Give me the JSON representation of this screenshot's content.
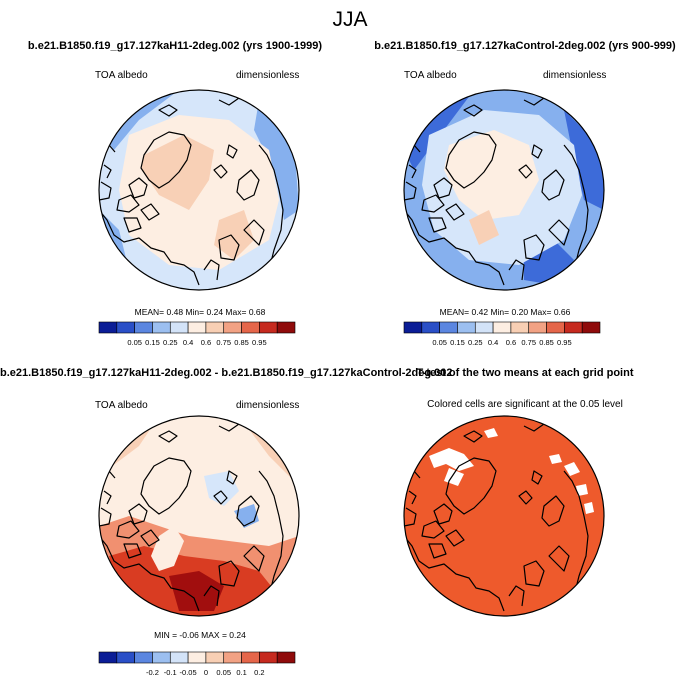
{
  "page_title": "JJA",
  "colors": {
    "blue_dark": "#0b1d96",
    "blue_mid": "#3d6bd9",
    "blue_light": "#86b0ee",
    "blue_pale": "#d6e6fa",
    "cream": "#fdeee2",
    "peach": "#f8d0b6",
    "orange": "#f19070",
    "red": "#d93c22",
    "dark_red": "#a10e0e",
    "significance": "#ee5a2c",
    "coastline": "#000000"
  },
  "panels": [
    {
      "title": "b.e21.B1850.f19_g17.127kaH11-2deg.002 (yrs 1900-1999)",
      "left_label": "TOA albedo",
      "right_label": "dimensionless",
      "stats": {
        "mean_label": "MEAN=",
        "mean": "0.48",
        "min_label": "Min=",
        "min": "0.24",
        "max_label": "Max=",
        "max": "0.68"
      },
      "colorbar_ticks": [
        "0.05",
        "0.15",
        "0.25",
        "0.4",
        "0.6",
        "0.75",
        "0.85",
        "0.95"
      ]
    },
    {
      "title": "b.e21.B1850.f19_g17.127kaControl-2deg.002 (yrs 900-999)",
      "left_label": "TOA albedo",
      "right_label": "dimensionless",
      "stats": {
        "mean_label": "MEAN=",
        "mean": "0.42",
        "min_label": "Min=",
        "min": "0.20",
        "max_label": "Max=",
        "max": "0.66"
      },
      "colorbar_ticks": [
        "0.05",
        "0.15",
        "0.25",
        "0.4",
        "0.6",
        "0.75",
        "0.85",
        "0.95"
      ]
    },
    {
      "title": "b.e21.B1850.f19_g17.127kaH11-2deg.002 - b.e21.B1850.f19_g17.127kaControl-2deg.002",
      "left_label": "TOA albedo",
      "right_label": "dimensionless",
      "stats": {
        "min_label": "MIN =",
        "min": "-0.06",
        "max_label": "MAX =",
        "max": "0.24"
      },
      "colorbar_ticks": [
        "-0.2",
        "-0.1",
        "-0.05",
        "0",
        "0.05",
        "0.1",
        "0.2"
      ]
    },
    {
      "title": "T-test of the two means at each grid point",
      "subtitle": "Colored cells are significant at the 0.05 level"
    }
  ]
}
